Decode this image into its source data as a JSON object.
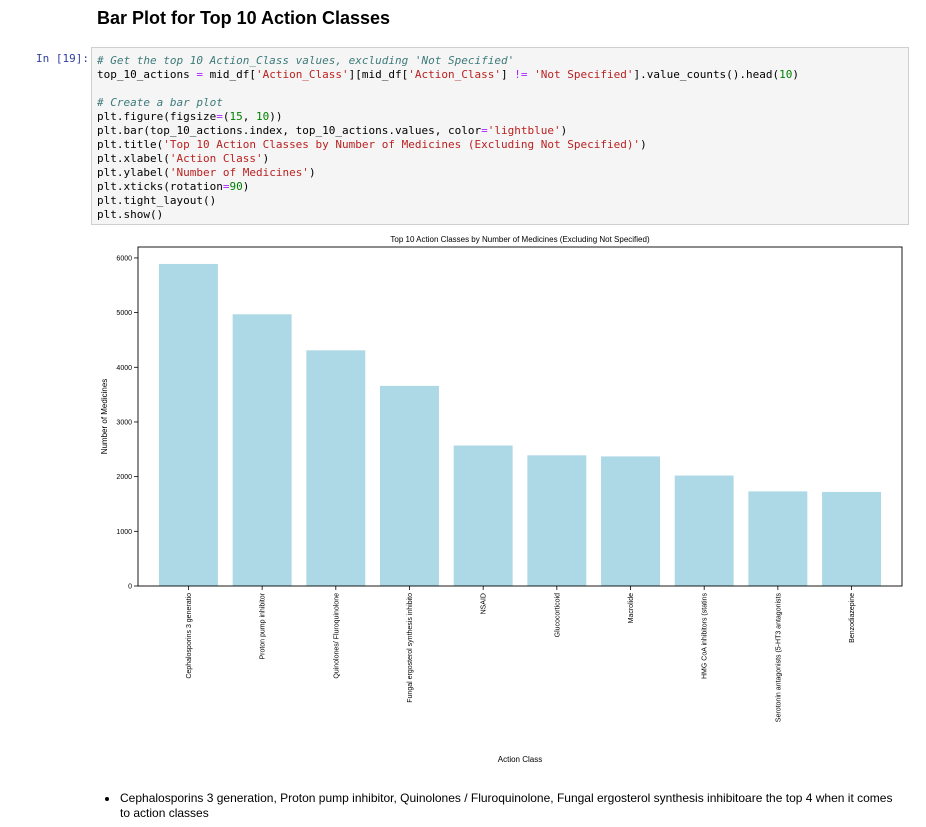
{
  "section_heading": "Bar Plot for Top 10 Action Classes",
  "cell": {
    "prompt": "In [19]:",
    "code_lines": [
      [
        {
          "t": "# Get the top 10 Action_Class values, excluding 'Not Specified'",
          "c": "cm"
        }
      ],
      [
        {
          "t": "top_10_actions "
        },
        {
          "t": "=",
          "c": "op"
        },
        {
          "t": " mid_df["
        },
        {
          "t": "'Action_Class'",
          "c": "st"
        },
        {
          "t": "][mid_df["
        },
        {
          "t": "'Action_Class'",
          "c": "st"
        },
        {
          "t": "] "
        },
        {
          "t": "!=",
          "c": "op"
        },
        {
          "t": " "
        },
        {
          "t": "'Not Specified'",
          "c": "st"
        },
        {
          "t": "].value_counts().head("
        },
        {
          "t": "10",
          "c": "nu"
        },
        {
          "t": ")"
        }
      ],
      [
        {
          "t": ""
        }
      ],
      [
        {
          "t": "# Create a bar plot",
          "c": "cm"
        }
      ],
      [
        {
          "t": "plt.figure(figsize"
        },
        {
          "t": "=",
          "c": "op"
        },
        {
          "t": "("
        },
        {
          "t": "15",
          "c": "nu"
        },
        {
          "t": ", "
        },
        {
          "t": "10",
          "c": "nu"
        },
        {
          "t": "))"
        }
      ],
      [
        {
          "t": "plt.bar(top_10_actions.index, top_10_actions.values, color"
        },
        {
          "t": "=",
          "c": "op"
        },
        {
          "t": "'lightblue'",
          "c": "st"
        },
        {
          "t": ")"
        }
      ],
      [
        {
          "t": "plt.title("
        },
        {
          "t": "'Top 10 Action Classes by Number of Medicines (Excluding Not Specified)'",
          "c": "st"
        },
        {
          "t": ")"
        }
      ],
      [
        {
          "t": "plt.xlabel("
        },
        {
          "t": "'Action Class'",
          "c": "st"
        },
        {
          "t": ")"
        }
      ],
      [
        {
          "t": "plt.ylabel("
        },
        {
          "t": "'Number of Medicines'",
          "c": "st"
        },
        {
          "t": ")"
        }
      ],
      [
        {
          "t": "plt.xticks(rotation"
        },
        {
          "t": "=",
          "c": "op"
        },
        {
          "t": "90",
          "c": "nu"
        },
        {
          "t": ")"
        }
      ],
      [
        {
          "t": "plt.tight_layout()"
        }
      ],
      [
        {
          "t": "plt.show()"
        }
      ]
    ]
  },
  "chart_data": {
    "type": "bar",
    "title": "Top 10 Action Classes by Number of Medicines (Excluding Not Specified)",
    "xlabel": "Action Class",
    "ylabel": "Number of Medicines",
    "ylim": [
      0,
      6200
    ],
    "yticks": [
      0,
      1000,
      2000,
      3000,
      4000,
      5000,
      6000
    ],
    "categories": [
      "Cephalosporins   3 generatio",
      "Proton pump inhibitor",
      "Quinolones/ Fluroquinolone",
      "Fungal ergosterol synthesis inhibito",
      "NSAID",
      "Glucocorticoid",
      "Macrolide",
      "HMG CoA inhibitors (statins",
      "Serotonin antagonists (5-HT3 antagonists",
      "Benzodiazepine"
    ],
    "values": [
      5890,
      4970,
      4310,
      3660,
      2570,
      2390,
      2370,
      2020,
      1730,
      1720
    ],
    "bar_color": "#add8e6",
    "grid": false,
    "legend": false
  },
  "notes": [
    "Cephalosporins 3 generation, Proton pump inhibitor, Quinolones / Fluroquinolone, Fungal ergosterol synthesis inhibitoare the top 4 when it comes to action classes"
  ]
}
